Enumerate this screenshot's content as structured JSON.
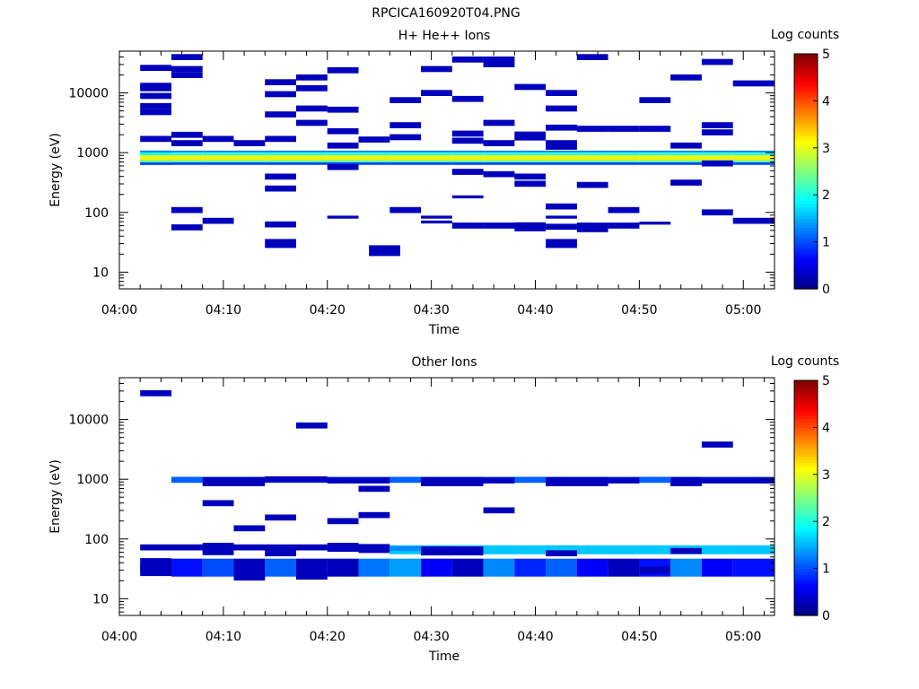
{
  "figure_title": "RPCICA160920T04.PNG",
  "colors": {
    "colormap": [
      "#00007f",
      "#0000ff",
      "#007fff",
      "#00ffff",
      "#7fff7f",
      "#ffff00",
      "#ff7f00",
      "#ff0000",
      "#7f0000"
    ]
  },
  "chart_data": [
    {
      "type": "heatmap",
      "title": "H+ He++ Ions",
      "xlabel": "Time",
      "ylabel": "Energy (eV)",
      "x_ticks": [
        "04:00",
        "04:10",
        "04:20",
        "04:30",
        "04:40",
        "04:50",
        "05:00"
      ],
      "y_ticks": [
        "10",
        "100",
        "1000",
        "10000"
      ],
      "xlim_minutes": [
        0,
        63
      ],
      "ylim_log10": [
        0.72,
        4.7
      ],
      "colorbar": {
        "label": "Log counts",
        "ticks": [
          "0",
          "1",
          "2",
          "3",
          "4",
          "5"
        ],
        "range": [
          0,
          5
        ]
      },
      "cells": [
        [
          2,
          5,
          0.3,
          1.2
        ],
        [
          2,
          5,
          0.3,
          2.4
        ],
        [
          5,
          8,
          0.3,
          2.6
        ],
        [
          8,
          11,
          0.3,
          2.6
        ],
        [
          11,
          14,
          0.3,
          2.6
        ],
        [
          14,
          17,
          0.3,
          2.6
        ],
        [
          17,
          20,
          0.3,
          2.6
        ],
        [
          20,
          23,
          0.3,
          2.6
        ],
        [
          23,
          26,
          0.3,
          2.6
        ],
        [
          26,
          29,
          0.3,
          2.6
        ],
        [
          29,
          32,
          0.3,
          2.6
        ],
        [
          32,
          35,
          0.3,
          2.6
        ],
        [
          35,
          38,
          0.3,
          2.6
        ],
        [
          38,
          41,
          0.3,
          2.6
        ],
        [
          41,
          44,
          0.3,
          2.6
        ],
        [
          44,
          47,
          0.3,
          2.6
        ],
        [
          47,
          50,
          0.3,
          2.6
        ],
        [
          50,
          53,
          0.3,
          2.6
        ],
        [
          53,
          56,
          0.3,
          2.6
        ],
        [
          56,
          59,
          0.3,
          2.6
        ],
        [
          59,
          63,
          0.3,
          2.6
        ],
        [
          2,
          5,
          4.42,
          0.1
        ],
        [
          2,
          5,
          4.12,
          0.1
        ],
        [
          2,
          5,
          4.08,
          0.1
        ],
        [
          2,
          5,
          3.95,
          0.1
        ],
        [
          2,
          5,
          3.78,
          0.1
        ],
        [
          2,
          5,
          3.68,
          0.1
        ],
        [
          2,
          5,
          3.23,
          0.1
        ],
        [
          5,
          8,
          4.6,
          0.1
        ],
        [
          5,
          8,
          4.4,
          0.1
        ],
        [
          5,
          8,
          4.3,
          0.1
        ],
        [
          5,
          8,
          3.3,
          0.1
        ],
        [
          5,
          8,
          3.16,
          0.1
        ],
        [
          5,
          8,
          2.04,
          0.1
        ],
        [
          5,
          8,
          1.75,
          0.1
        ],
        [
          8,
          11,
          3.23,
          0.1
        ],
        [
          8,
          11,
          1.86,
          0.1
        ],
        [
          11,
          14,
          3.16,
          0.1
        ],
        [
          14,
          17,
          4.18,
          0.1
        ],
        [
          14,
          17,
          3.98,
          0.1
        ],
        [
          14,
          17,
          3.64,
          0.1
        ],
        [
          14,
          17,
          3.23,
          0.1
        ],
        [
          14,
          17,
          2.6,
          0.1
        ],
        [
          14,
          17,
          2.4,
          0.1
        ],
        [
          14,
          17,
          1.8,
          0.1
        ],
        [
          14,
          17,
          1.48,
          0.15
        ],
        [
          17,
          20,
          4.26,
          0.1
        ],
        [
          17,
          20,
          4.08,
          0.1
        ],
        [
          17,
          20,
          3.74,
          0.1
        ],
        [
          17,
          20,
          3.5,
          0.1
        ],
        [
          20,
          23,
          4.38,
          0.1
        ],
        [
          20,
          23,
          3.72,
          0.1
        ],
        [
          20,
          23,
          3.36,
          0.1
        ],
        [
          20,
          23,
          3.12,
          0.1
        ],
        [
          20,
          23,
          2.76,
          0.1
        ],
        [
          20,
          23,
          1.92,
          0.05
        ],
        [
          23,
          26,
          3.22,
          0.1
        ],
        [
          24,
          27,
          1.36,
          0.18
        ],
        [
          26,
          29,
          3.88,
          0.1
        ],
        [
          26,
          29,
          3.46,
          0.1
        ],
        [
          26,
          29,
          3.26,
          0.1
        ],
        [
          26,
          29,
          2.04,
          0.1
        ],
        [
          29,
          32,
          4.4,
          0.1
        ],
        [
          29,
          32,
          4.0,
          0.1
        ],
        [
          29,
          32,
          1.92,
          0.05
        ],
        [
          29,
          32,
          1.84,
          0.05
        ],
        [
          32,
          35,
          4.56,
          0.1
        ],
        [
          32,
          35,
          3.9,
          0.1
        ],
        [
          32,
          35,
          3.32,
          0.1
        ],
        [
          32,
          35,
          3.2,
          0.1
        ],
        [
          32,
          35,
          2.68,
          0.1
        ],
        [
          32,
          35,
          2.26,
          0.05
        ],
        [
          32,
          35,
          1.78,
          0.1
        ],
        [
          35,
          38,
          4.56,
          0.1
        ],
        [
          35,
          38,
          4.48,
          0.1
        ],
        [
          35,
          38,
          3.5,
          0.1
        ],
        [
          35,
          38,
          3.16,
          0.1
        ],
        [
          35,
          38,
          2.64,
          0.1
        ],
        [
          35,
          38,
          1.78,
          0.1
        ],
        [
          38,
          41,
          4.1,
          0.1
        ],
        [
          38,
          41,
          3.28,
          0.15
        ],
        [
          38,
          41,
          2.6,
          0.1
        ],
        [
          38,
          41,
          2.48,
          0.1
        ],
        [
          38,
          41,
          1.76,
          0.15
        ],
        [
          41,
          44,
          4.0,
          0.1
        ],
        [
          41,
          44,
          3.74,
          0.1
        ],
        [
          41,
          44,
          3.42,
          0.1
        ],
        [
          41,
          44,
          3.16,
          0.1
        ],
        [
          41,
          44,
          3.1,
          0.1
        ],
        [
          41,
          44,
          2.1,
          0.1
        ],
        [
          41,
          44,
          1.92,
          0.05
        ],
        [
          41,
          44,
          1.76,
          0.1
        ],
        [
          41,
          44,
          1.48,
          0.15
        ],
        [
          44,
          47,
          4.6,
          0.1
        ],
        [
          44,
          47,
          3.4,
          0.1
        ],
        [
          44,
          47,
          2.46,
          0.1
        ],
        [
          44,
          47,
          1.78,
          0.1
        ],
        [
          44,
          47,
          1.72,
          0.1
        ],
        [
          47,
          50,
          3.4,
          0.1
        ],
        [
          47,
          50,
          2.04,
          0.1
        ],
        [
          47,
          50,
          1.78,
          0.1
        ],
        [
          50,
          53,
          3.88,
          0.1
        ],
        [
          50,
          53,
          3.4,
          0.1
        ],
        [
          50,
          53,
          1.82,
          0.05
        ],
        [
          53,
          56,
          4.26,
          0.1
        ],
        [
          53,
          56,
          3.12,
          0.1
        ],
        [
          53,
          56,
          2.5,
          0.1
        ],
        [
          56,
          59,
          4.52,
          0.1
        ],
        [
          56,
          59,
          3.46,
          0.1
        ],
        [
          56,
          59,
          3.34,
          0.1
        ],
        [
          56,
          59,
          2.82,
          0.1
        ],
        [
          56,
          59,
          2.0,
          0.1
        ],
        [
          59,
          63,
          4.16,
          0.1
        ],
        [
          59,
          63,
          1.86,
          0.1
        ]
      ]
    },
    {
      "type": "heatmap",
      "title": "Other Ions",
      "xlabel": "Time",
      "ylabel": "Energy (eV)",
      "x_ticks": [
        "04:00",
        "04:10",
        "04:20",
        "04:30",
        "04:40",
        "04:50",
        "05:00"
      ],
      "y_ticks": [
        "10",
        "100",
        "1000",
        "10000"
      ],
      "xlim_minutes": [
        0,
        63
      ],
      "ylim_log10": [
        0.72,
        4.7
      ],
      "colorbar": {
        "label": "Log counts",
        "ticks": [
          "0",
          "1",
          "2",
          "3",
          "4",
          "5"
        ],
        "range": [
          0,
          5
        ]
      },
      "cells": [
        [
          2,
          5,
          4.44,
          0.1
        ],
        [
          17,
          20,
          3.9,
          0.1
        ],
        [
          56,
          59,
          3.58,
          0.1
        ],
        [
          5,
          63,
          2.99,
          0.1,
          1.1
        ],
        [
          8,
          14,
          2.96,
          0.15
        ],
        [
          14,
          20,
          3.0,
          0.1
        ],
        [
          20,
          26,
          2.98,
          0.1
        ],
        [
          29,
          35,
          2.96,
          0.15
        ],
        [
          35,
          38,
          2.98,
          0.1
        ],
        [
          41,
          47,
          2.96,
          0.15
        ],
        [
          47,
          50,
          2.98,
          0.1
        ],
        [
          53,
          56,
          2.96,
          0.15
        ],
        [
          56,
          63,
          2.98,
          0.1
        ],
        [
          8,
          11,
          2.6,
          0.1
        ],
        [
          11,
          14,
          2.18,
          0.1
        ],
        [
          14,
          17,
          2.36,
          0.1
        ],
        [
          20,
          23,
          2.3,
          0.1
        ],
        [
          23,
          26,
          2.84,
          0.1
        ],
        [
          23,
          26,
          2.4,
          0.1
        ],
        [
          35,
          38,
          2.48,
          0.1
        ],
        [
          2,
          11,
          1.86,
          0.1
        ],
        [
          8,
          11,
          1.86,
          0.15
        ],
        [
          11,
          20,
          1.86,
          0.1
        ],
        [
          20,
          23,
          1.86,
          0.15
        ],
        [
          23,
          26,
          1.84,
          0.15
        ],
        [
          26,
          63,
          1.82,
          0.15,
          1.6
        ],
        [
          26,
          32,
          1.84,
          0.08,
          1.3
        ],
        [
          8,
          11,
          1.78,
          0.1
        ],
        [
          14,
          17,
          1.76,
          0.1
        ],
        [
          29,
          35,
          1.8,
          0.15
        ],
        [
          41,
          44,
          1.76,
          0.1
        ],
        [
          53,
          56,
          1.8,
          0.1
        ],
        [
          2,
          5,
          1.53,
          0.3
        ],
        [
          2,
          5,
          1.52,
          0.12
        ],
        [
          5,
          8,
          1.52,
          0.3,
          0.7
        ],
        [
          8,
          11,
          1.52,
          0.3,
          1.0
        ],
        [
          11,
          14,
          1.52,
          0.3
        ],
        [
          11,
          14,
          1.38,
          0.15
        ],
        [
          14,
          17,
          1.52,
          0.3,
          1.1
        ],
        [
          17,
          20,
          1.52,
          0.3
        ],
        [
          17,
          20,
          1.38,
          0.12
        ],
        [
          20,
          23,
          1.52,
          0.3
        ],
        [
          23,
          26,
          1.52,
          0.3,
          1.2
        ],
        [
          26,
          29,
          1.52,
          0.3,
          1.4
        ],
        [
          29,
          32,
          1.52,
          0.3,
          0.6
        ],
        [
          32,
          35,
          1.52,
          0.3
        ],
        [
          32,
          35,
          1.6,
          0.1
        ],
        [
          35,
          38,
          1.52,
          0.3,
          1.3
        ],
        [
          38,
          41,
          1.52,
          0.3,
          0.8
        ],
        [
          41,
          44,
          1.52,
          0.3,
          1.1
        ],
        [
          44,
          47,
          1.52,
          0.3,
          0.6
        ],
        [
          47,
          50,
          1.52,
          0.3
        ],
        [
          47,
          50,
          1.58,
          0.1
        ],
        [
          50,
          53,
          1.52,
          0.3,
          0.7
        ],
        [
          50,
          53,
          1.48,
          0.12
        ],
        [
          53,
          56,
          1.52,
          0.3,
          1.3
        ],
        [
          56,
          59,
          1.52,
          0.3,
          0.6
        ],
        [
          59,
          63,
          1.52,
          0.3,
          0.7
        ]
      ]
    }
  ]
}
